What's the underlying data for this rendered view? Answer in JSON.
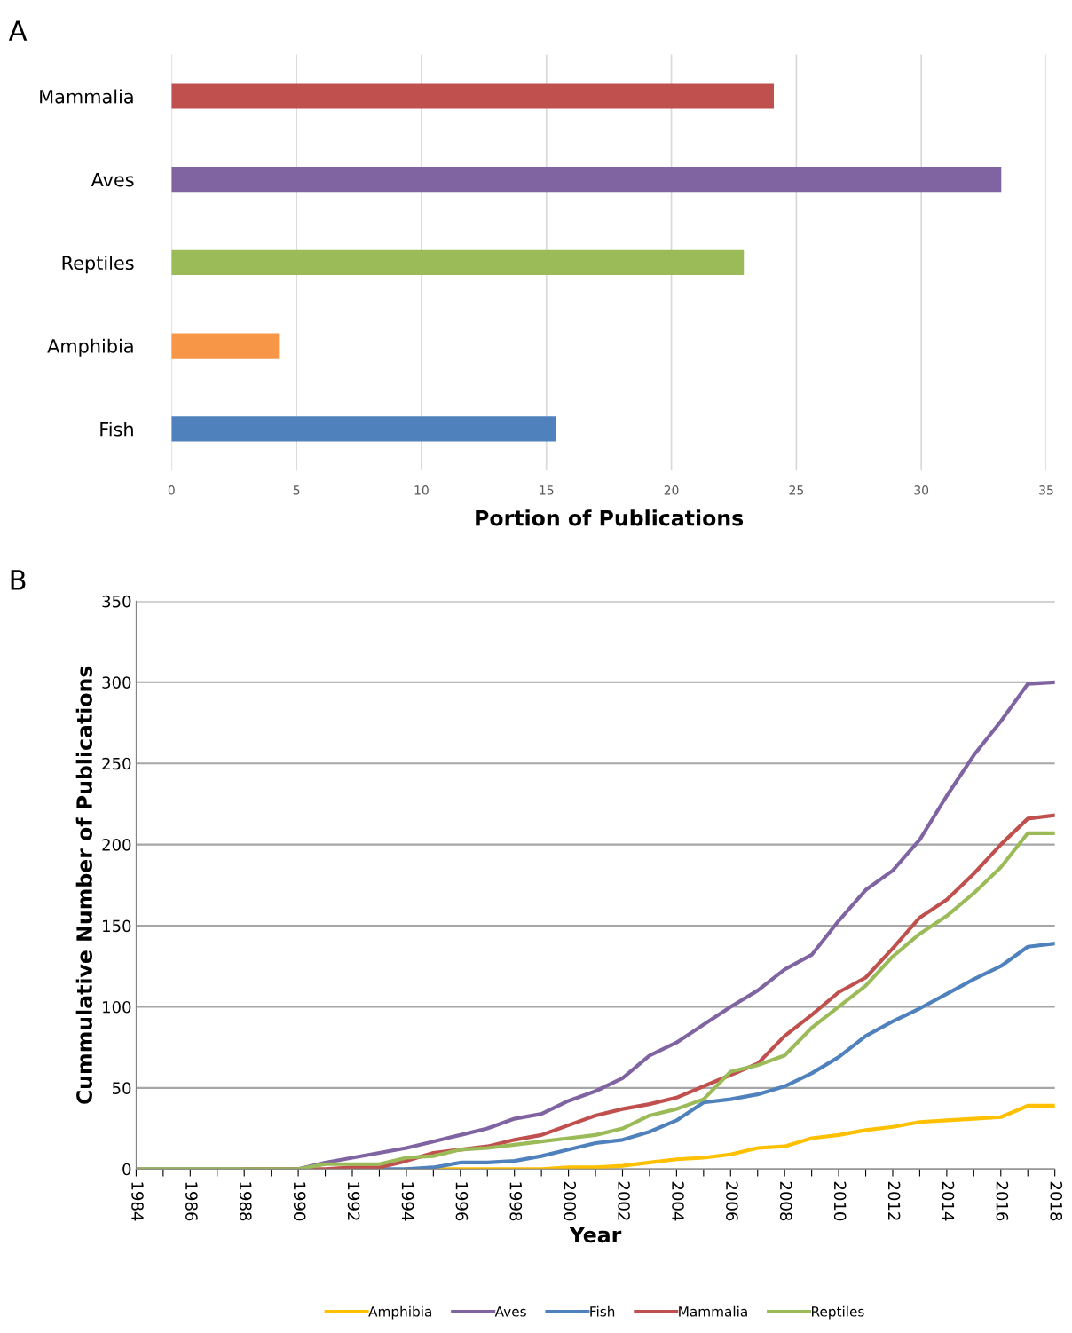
{
  "chart_data": [
    {
      "type": "bar",
      "orientation": "horizontal",
      "categories": [
        "Mammalia",
        "Aves",
        "Reptiles",
        "Amphibia",
        "Fish"
      ],
      "values": [
        24.1,
        33.2,
        22.9,
        4.3,
        15.4
      ],
      "colors": [
        "#c0504d",
        "#8064a2",
        "#9bbb59",
        "#f79646",
        "#4f81bd"
      ],
      "xlabel": "Portion of Publications",
      "xlim": [
        0,
        35
      ],
      "xticks": [
        0,
        5,
        10,
        15,
        20,
        25,
        30,
        35
      ],
      "grid": "x",
      "annotations": [
        "A"
      ]
    },
    {
      "type": "line",
      "xlabel": "Year",
      "ylabel": "Cummulative Number of Publications",
      "x": [
        1984,
        1985,
        1986,
        1987,
        1988,
        1989,
        1990,
        1991,
        1992,
        1993,
        1994,
        1995,
        1996,
        1997,
        1998,
        1999,
        2000,
        2001,
        2002,
        2003,
        2004,
        2005,
        2006,
        2007,
        2008,
        2009,
        2010,
        2011,
        2012,
        2013,
        2014,
        2015,
        2016,
        2017,
        2018
      ],
      "series": [
        {
          "name": "Amphibia",
          "color": "#ffc000",
          "values": [
            null,
            null,
            null,
            null,
            null,
            null,
            null,
            null,
            null,
            null,
            0,
            0,
            0,
            0,
            0,
            0,
            1,
            1,
            2,
            4,
            6,
            7,
            9,
            13,
            14,
            19,
            21,
            24,
            26,
            29,
            30,
            31,
            32,
            39,
            39
          ]
        },
        {
          "name": "Aves",
          "color": "#8064a2",
          "values": [
            0,
            0,
            0,
            0,
            0,
            0,
            0,
            4,
            7,
            10,
            13,
            17,
            21,
            25,
            31,
            34,
            42,
            48,
            56,
            70,
            78,
            89,
            100,
            110,
            123,
            132,
            153,
            172,
            184,
            203,
            230,
            255,
            276,
            299,
            300
          ]
        },
        {
          "name": "Fish",
          "color": "#4f81bd",
          "values": [
            null,
            null,
            null,
            null,
            null,
            null,
            null,
            null,
            0,
            0,
            0,
            1,
            4,
            4,
            5,
            8,
            12,
            16,
            18,
            23,
            30,
            41,
            43,
            46,
            51,
            59,
            69,
            82,
            91,
            99,
            108,
            117,
            125,
            137,
            139
          ]
        },
        {
          "name": "Mammalia",
          "color": "#c0504d",
          "values": [
            null,
            null,
            null,
            null,
            0,
            0,
            0,
            0,
            1,
            1,
            5,
            10,
            12,
            14,
            18,
            21,
            27,
            33,
            37,
            40,
            44,
            51,
            58,
            65,
            82,
            95,
            109,
            118,
            136,
            155,
            166,
            182,
            200,
            216,
            218
          ]
        },
        {
          "name": "Reptiles",
          "color": "#9bbb59",
          "values": [
            0,
            0,
            0,
            0,
            0,
            0,
            0,
            3,
            3,
            3,
            7,
            8,
            12,
            13,
            15,
            17,
            19,
            21,
            25,
            33,
            37,
            43,
            60,
            64,
            70,
            87,
            100,
            113,
            131,
            145,
            156,
            170,
            186,
            207,
            207
          ]
        }
      ],
      "xlim": [
        1984,
        2018
      ],
      "xticks": [
        1984,
        {
          "value": 1985,
          "label": null
        },
        1986,
        {
          "value": 1987,
          "label": null
        },
        1988,
        {
          "value": 1989,
          "label": null
        },
        1990,
        {
          "value": 1991,
          "label": null
        },
        1992,
        {
          "value": 1993,
          "label": null
        },
        1994,
        {
          "value": 1995,
          "label": null
        },
        1996,
        {
          "value": 1997,
          "label": null
        },
        1998,
        {
          "value": 1999,
          "label": null
        },
        2000,
        {
          "value": 2001,
          "label": null
        },
        2002,
        {
          "value": 2003,
          "label": null
        },
        2004,
        {
          "value": 2005,
          "label": null
        },
        2006,
        {
          "value": 2007,
          "label": null
        },
        2008,
        {
          "value": 2009,
          "label": null
        },
        2010,
        {
          "value": 2011,
          "label": null
        },
        2012,
        {
          "value": 2013,
          "label": null
        },
        2014,
        {
          "value": 2015,
          "label": null
        },
        2016,
        {
          "value": 2017,
          "label": null
        },
        2018
      ],
      "ylim": [
        0,
        350
      ],
      "yticks": [
        0,
        50,
        100,
        150,
        200,
        250,
        300,
        350
      ],
      "grid": "y",
      "legend": "bottom",
      "marker": "none",
      "line_style": "solid",
      "annotations": [
        "B"
      ]
    }
  ]
}
